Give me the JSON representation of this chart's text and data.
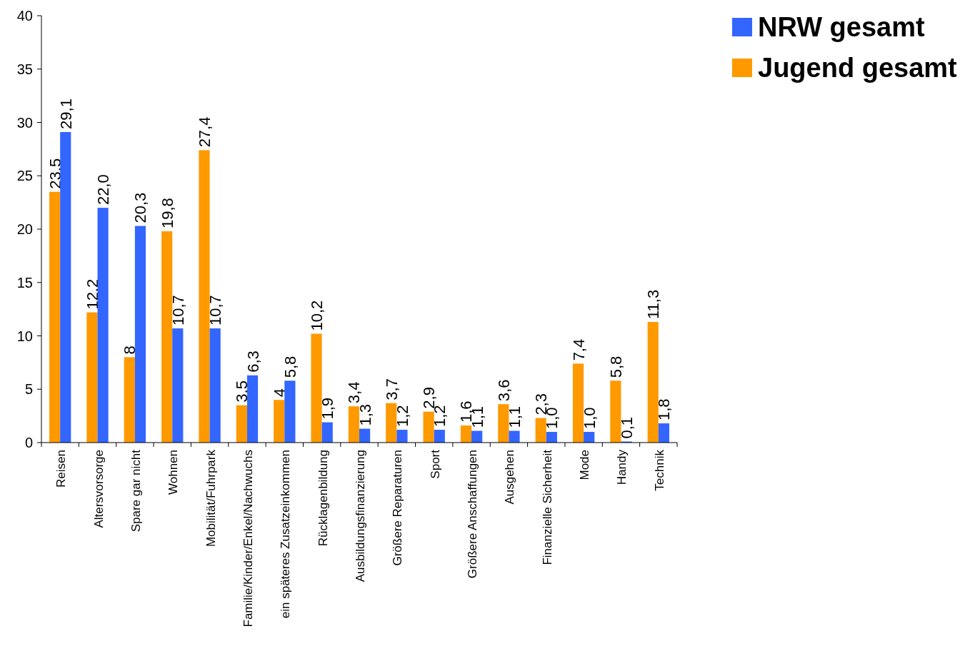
{
  "chart_data": {
    "type": "bar",
    "categories": [
      "Reisen",
      "Altersvorsorge",
      "Spare gar nicht",
      "Wohnen",
      "Mobilität/Fuhrpark",
      "Familie/Kinder/Enkel/Nachwuchs",
      "ein späteres Zusatzeinkommen",
      "Rücklagenbildung",
      "Ausbildungsfinanzierung",
      "Größere Reparaturen",
      "Sport",
      "Größere Anschaffungen",
      "Ausgehen",
      "Finanzielle Sicherheit",
      "Mode",
      "Handy",
      "Technik"
    ],
    "series": [
      {
        "name": "Jugend gesamt",
        "color": "#ff9900",
        "values": [
          23.5,
          12.2,
          8,
          19.8,
          27.4,
          3.5,
          4,
          10.2,
          3.4,
          3.7,
          2.9,
          1.6,
          3.6,
          2.3,
          7.4,
          5.8,
          11.3
        ],
        "value_labels": [
          "23,5",
          "12,2",
          "8",
          "19,8",
          "27,4",
          "3,5",
          "4",
          "10,2",
          "3,4",
          "3,7",
          "2,9",
          "1,6",
          "3,6",
          "2,3",
          "7,4",
          "5,8",
          "11,3"
        ]
      },
      {
        "name": "NRW gesamt",
        "color": "#3366ff",
        "values": [
          29.1,
          22.0,
          20.3,
          10.7,
          10.7,
          6.3,
          5.8,
          1.9,
          1.3,
          1.2,
          1.2,
          1.1,
          1.1,
          1.0,
          1.0,
          0.1,
          1.8
        ],
        "value_labels": [
          "29,1",
          "22,0",
          "20,3",
          "10,7",
          "10,7",
          "6,3",
          "5,8",
          "1,9",
          "1,3",
          "1,2",
          "1,2",
          "1,1",
          "1,1",
          "1,0",
          "1,0",
          "0,1",
          "1,8"
        ]
      }
    ],
    "ylim": [
      0,
      40
    ],
    "yticks": [
      0,
      5,
      10,
      15,
      20,
      25,
      30,
      35,
      40
    ],
    "legend": "top right"
  }
}
